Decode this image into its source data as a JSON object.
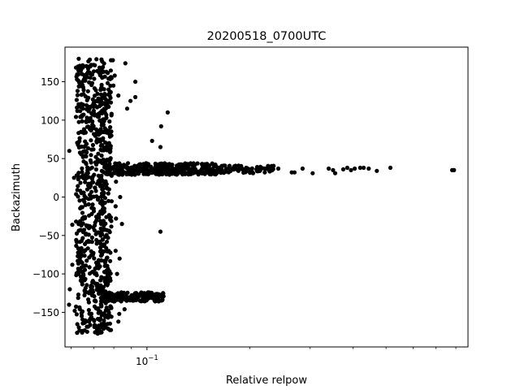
{
  "chart_data": {
    "type": "scatter",
    "title": "20200518_0700UTC",
    "xlabel": "Relative relpow",
    "ylabel": "Backazimuth",
    "xscale": "log",
    "xlim": [
      0.0576,
      0.868
    ],
    "ylim": [
      -195,
      195
    ],
    "yticks": [
      150,
      100,
      50,
      0,
      -50,
      -100,
      -150
    ],
    "ytick_labels": [
      "150",
      "100",
      "50",
      "0",
      "−50",
      "−100",
      "−150"
    ],
    "xticks_major": [
      0.1
    ],
    "xtick_major_labels": {
      "base": "10",
      "exponent": "−1"
    },
    "xticks_minor": [
      0.06,
      0.07,
      0.08,
      0.09,
      0.2,
      0.3,
      0.4,
      0.5,
      0.6,
      0.7,
      0.8
    ],
    "grid": false,
    "marker_color": "#000000",
    "clusters": [
      {
        "x_min": 0.062,
        "x_max": 0.074,
        "y_min": -178,
        "y_max": 180,
        "count": 520
      },
      {
        "x_min": 0.073,
        "x_max": 0.079,
        "y_min": -175,
        "y_max": 178,
        "count": 280
      },
      {
        "x_min": 0.075,
        "x_max": 0.16,
        "y_min": 29,
        "y_max": 44,
        "count": 340
      },
      {
        "x_min": 0.16,
        "x_max": 0.235,
        "y_min": 31,
        "y_max": 41,
        "count": 60
      },
      {
        "x_min": 0.073,
        "x_max": 0.112,
        "y_min": -136,
        "y_max": -124,
        "count": 160
      }
    ],
    "points": [
      [
        0.0593,
        60
      ],
      [
        0.0605,
        -36
      ],
      [
        0.0605,
        -88
      ],
      [
        0.0595,
        -120
      ],
      [
        0.0592,
        -140
      ],
      [
        0.0615,
        -148
      ],
      [
        0.0612,
        25
      ],
      [
        0.0785,
        178
      ],
      [
        0.0795,
        178
      ],
      [
        0.0865,
        174
      ],
      [
        0.115,
        110
      ],
      [
        0.11,
        92
      ],
      [
        0.1035,
        73
      ],
      [
        0.1095,
        65
      ],
      [
        0.0925,
        130
      ],
      [
        0.0925,
        150
      ],
      [
        0.1095,
        -45
      ],
      [
        0.0825,
        132
      ],
      [
        0.0895,
        125
      ],
      [
        0.0875,
        115
      ],
      [
        0.0785,
        -173
      ],
      [
        0.0825,
        -162
      ],
      [
        0.083,
        -152
      ],
      [
        0.086,
        -146
      ],
      [
        0.0905,
        -132
      ],
      [
        0.0905,
        -128
      ],
      [
        0.0955,
        -135
      ],
      [
        0.104,
        -130
      ],
      [
        0.1085,
        -128
      ],
      [
        0.081,
        -70
      ],
      [
        0.0845,
        -35
      ],
      [
        0.081,
        -12
      ],
      [
        0.0835,
        0
      ],
      [
        0.0775,
        10
      ],
      [
        0.0812,
        20
      ],
      [
        0.0812,
        -28
      ],
      [
        0.0832,
        -80
      ],
      [
        0.0818,
        -100
      ],
      [
        0.0798,
        145
      ],
      [
        0.0805,
        158
      ],
      [
        0.242,
        37
      ],
      [
        0.265,
        32
      ],
      [
        0.27,
        32
      ],
      [
        0.285,
        37
      ],
      [
        0.305,
        31
      ],
      [
        0.34,
        37
      ],
      [
        0.35,
        35
      ],
      [
        0.355,
        31
      ],
      [
        0.375,
        36
      ],
      [
        0.385,
        38
      ],
      [
        0.395,
        35
      ],
      [
        0.405,
        37
      ],
      [
        0.42,
        38
      ],
      [
        0.43,
        38
      ],
      [
        0.47,
        34
      ],
      [
        0.445,
        37
      ],
      [
        0.515,
        38
      ],
      [
        0.78,
        35
      ],
      [
        0.79,
        35
      ],
      [
        0.225,
        37
      ],
      [
        0.215,
        37
      ],
      [
        0.21,
        39
      ],
      [
        0.2,
        35
      ],
      [
        0.195,
        38
      ],
      [
        0.19,
        36
      ],
      [
        0.185,
        34
      ],
      [
        0.18,
        40
      ],
      [
        0.175,
        36
      ],
      [
        0.17,
        33
      ],
      [
        0.165,
        38
      ]
    ]
  }
}
